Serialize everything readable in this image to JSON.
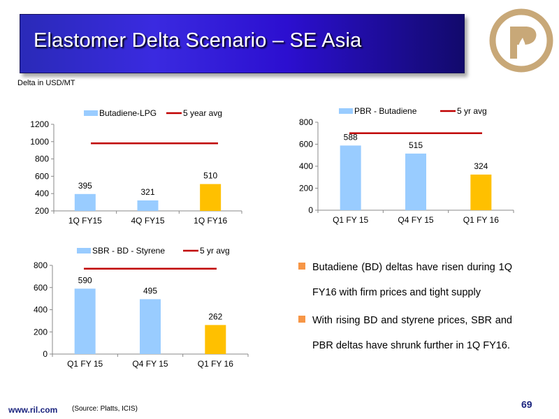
{
  "title": "Elastomer Delta Scenario – SE Asia",
  "delta_label": "Delta in USD/MT",
  "colors": {
    "bar_blue": "#99ccff",
    "bar_orange": "#ffc000",
    "avg_line": "#c00000",
    "bullet": "#f79646",
    "banner": "#2a24c8"
  },
  "logo": {
    "icon": "reliance-logo-icon",
    "color": "#c8a878"
  },
  "bullets": [
    "Butadiene (BD) deltas have risen during 1Q FY16 with firm prices and tight supply",
    "With rising BD and styrene prices, SBR and PBR deltas have shrunk further in 1Q FY16."
  ],
  "footer": {
    "url": "www.ril.com",
    "source": "(Source: Platts, ICIS)",
    "page": "69"
  },
  "chart_data": [
    {
      "type": "bar",
      "categories": [
        "1Q FY15",
        "4Q FY15",
        "1Q FY16"
      ],
      "series": [
        {
          "name": "Butadiene-LPG",
          "values": [
            395,
            321,
            510
          ],
          "colors": [
            "#99ccff",
            "#99ccff",
            "#ffc000"
          ]
        },
        {
          "name": "5 year avg",
          "type": "line",
          "values": [
            980,
            980,
            980
          ],
          "color": "#c00000"
        }
      ],
      "data_labels": [
        "395",
        "321",
        "510"
      ],
      "yticks": [
        "200",
        "400",
        "600",
        "800",
        "1000",
        "1200"
      ],
      "ylim": [
        200,
        1200
      ],
      "legend": "top"
    },
    {
      "type": "bar",
      "categories": [
        "Q1 FY 15",
        "Q4 FY 15",
        "Q1 FY 16"
      ],
      "series": [
        {
          "name": "PBR - Butadiene",
          "values": [
            588,
            515,
            324
          ],
          "colors": [
            "#99ccff",
            "#99ccff",
            "#ffc000"
          ]
        },
        {
          "name": "5 yr avg",
          "type": "line",
          "values": [
            700,
            700,
            700
          ],
          "color": "#c00000"
        }
      ],
      "data_labels": [
        "588",
        "515",
        "324"
      ],
      "yticks": [
        "0",
        "200",
        "400",
        "600",
        "800"
      ],
      "ylim": [
        0,
        800
      ],
      "legend": "top"
    },
    {
      "type": "bar",
      "categories": [
        "Q1 FY 15",
        "Q4 FY 15",
        "Q1 FY 16"
      ],
      "series": [
        {
          "name": "SBR - BD - Styrene",
          "values": [
            590,
            495,
            262
          ],
          "colors": [
            "#99ccff",
            "#99ccff",
            "#ffc000"
          ]
        },
        {
          "name": "5 yr avg",
          "type": "line",
          "values": [
            770,
            770,
            770
          ],
          "color": "#c00000"
        }
      ],
      "data_labels": [
        "590",
        "495",
        "262"
      ],
      "yticks": [
        "0",
        "200",
        "400",
        "600",
        "800"
      ],
      "ylim": [
        0,
        800
      ],
      "legend": "top"
    }
  ]
}
